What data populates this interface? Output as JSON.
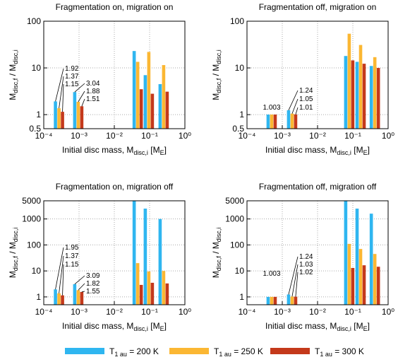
{
  "chart_data": [
    {
      "type": "bar",
      "title": "Fragmentation on, migration on",
      "xlabel": [
        "Initial disc mass, M",
        "disc,i",
        " [M",
        "E",
        "]"
      ],
      "ylabel": [
        "M",
        "disc,f",
        " / M",
        "disc,i"
      ],
      "x": [
        0.00027,
        0.00095,
        0.046,
        0.095,
        0.25
      ],
      "xlim": [
        0.0001,
        1
      ],
      "xticks": [
        {
          "value": 0.0001,
          "label": "10⁻⁴"
        },
        {
          "value": 0.001,
          "label": "10⁻³"
        },
        {
          "value": 0.01,
          "label": "10⁻²"
        },
        {
          "value": 0.1,
          "label": "10⁻¹"
        },
        {
          "value": 1,
          "label": "10⁰"
        }
      ],
      "ylim": [
        0.5,
        100
      ],
      "yticks": [
        0.5,
        1,
        10,
        100
      ],
      "xscale": "log",
      "yscale": "log",
      "grid": true,
      "series": [
        {
          "color": "#2fb6f0",
          "values": [
            1.92,
            3.04,
            23,
            7,
            4.5
          ],
          "value_labels": [
            "1.92",
            "3.04",
            null,
            null,
            null
          ]
        },
        {
          "color": "#fbb733",
          "values": [
            1.37,
            1.88,
            13.5,
            22,
            11.5
          ],
          "value_labels": [
            "1.37",
            "1.88",
            null,
            null,
            null
          ]
        },
        {
          "color": "#c4391b",
          "values": [
            1.15,
            1.51,
            3.5,
            2.8,
            3.1
          ],
          "value_labels": [
            "1.15",
            "1.51",
            null,
            null,
            null
          ]
        }
      ]
    },
    {
      "type": "bar",
      "title": "Fragmentation off, migration on",
      "xlabel": [
        "Initial disc mass, M",
        "disc,i",
        " [M",
        "E",
        "]"
      ],
      "ylabel": [
        "M",
        "disc,f",
        " / M",
        "disc,i"
      ],
      "x": [
        0.0005,
        0.0019,
        0.079,
        0.166,
        0.42
      ],
      "xlim": [
        0.0001,
        1
      ],
      "xticks": [
        {
          "value": 0.0001,
          "label": "10⁻⁴"
        },
        {
          "value": 0.001,
          "label": "10⁻³"
        },
        {
          "value": 0.01,
          "label": "10⁻²"
        },
        {
          "value": 0.1,
          "label": "10⁻¹"
        },
        {
          "value": 1,
          "label": "10⁰"
        }
      ],
      "ylim": [
        0.5,
        100
      ],
      "yticks": [
        0.5,
        1,
        10,
        100
      ],
      "xscale": "log",
      "yscale": "log",
      "grid": true,
      "series": [
        {
          "color": "#2fb6f0",
          "values": [
            1.003,
            1.24,
            18,
            13.5,
            11
          ],
          "value_labels": [
            "1.003",
            "1.24",
            null,
            null,
            null
          ]
        },
        {
          "color": "#fbb733",
          "values": [
            1.003,
            1.05,
            54,
            31,
            17
          ],
          "value_labels": [
            null,
            "1.05",
            null,
            null,
            null
          ]
        },
        {
          "color": "#c4391b",
          "values": [
            1.003,
            1.01,
            14.5,
            12.3,
            10
          ],
          "value_labels": [
            null,
            "1.01",
            null,
            null,
            null
          ]
        }
      ]
    },
    {
      "type": "bar",
      "title": "Fragmentation on, migration off",
      "xlabel": [
        "Initial disc mass, M",
        "disc,i",
        " [M",
        "E",
        "]"
      ],
      "ylabel": [
        "M",
        "disc,f",
        " / M",
        "disc,i"
      ],
      "x": [
        0.00027,
        0.00095,
        0.046,
        0.095,
        0.25
      ],
      "xlim": [
        0.0001,
        1
      ],
      "xticks": [
        {
          "value": 0.0001,
          "label": "10⁻⁴"
        },
        {
          "value": 0.001,
          "label": "10⁻³"
        },
        {
          "value": 0.01,
          "label": "10⁻²"
        },
        {
          "value": 0.1,
          "label": "10⁻¹"
        },
        {
          "value": 1,
          "label": "10⁰"
        }
      ],
      "ylim": [
        0.5,
        5000
      ],
      "yticks": [
        1,
        10,
        100,
        1000,
        5000
      ],
      "xscale": "log",
      "yscale": "log",
      "grid": true,
      "series": [
        {
          "color": "#2fb6f0",
          "values": [
            1.95,
            3.09,
            5000,
            2500,
            1000
          ],
          "value_labels": [
            "1.95",
            "3.09",
            null,
            null,
            null
          ]
        },
        {
          "color": "#fbb733",
          "values": [
            1.37,
            1.82,
            20,
            9.5,
            10
          ],
          "value_labels": [
            "1.37",
            "1.82",
            null,
            null,
            null
          ]
        },
        {
          "color": "#c4391b",
          "values": [
            1.15,
            1.55,
            2.9,
            3.5,
            3.3
          ],
          "value_labels": [
            "1.15",
            "1.55",
            null,
            null,
            null
          ]
        }
      ]
    },
    {
      "type": "bar",
      "title": "Fragmentation off, migration off",
      "xlabel": [
        "Initial disc mass, M",
        "disc,i",
        " [M",
        "E",
        "]"
      ],
      "ylabel": [
        "M",
        "disc,f",
        " / M",
        "disc,i"
      ],
      "x": [
        0.0005,
        0.0019,
        0.079,
        0.166,
        0.42
      ],
      "xlim": [
        0.0001,
        1
      ],
      "xticks": [
        {
          "value": 0.0001,
          "label": "10⁻⁴"
        },
        {
          "value": 0.001,
          "label": "10⁻³"
        },
        {
          "value": 0.01,
          "label": "10⁻²"
        },
        {
          "value": 0.1,
          "label": "10⁻¹"
        },
        {
          "value": 1,
          "label": "10⁰"
        }
      ],
      "ylim": [
        0.5,
        5000
      ],
      "yticks": [
        1,
        10,
        100,
        1000,
        5000
      ],
      "xscale": "log",
      "yscale": "log",
      "grid": true,
      "series": [
        {
          "color": "#2fb6f0",
          "values": [
            1.003,
            1.24,
            5000,
            2500,
            1600
          ],
          "value_labels": [
            "1.003",
            "1.24",
            null,
            null,
            null
          ]
        },
        {
          "color": "#fbb733",
          "values": [
            1.003,
            1.03,
            110,
            70,
            45
          ],
          "value_labels": [
            null,
            "1.03",
            null,
            null,
            null
          ]
        },
        {
          "color": "#c4391b",
          "values": [
            1.003,
            1.02,
            13,
            16.5,
            14.5
          ],
          "value_labels": [
            null,
            "1.02",
            null,
            null,
            null
          ]
        }
      ]
    }
  ],
  "legend": [
    [
      "T",
      "1 au",
      " = 200 K"
    ],
    [
      "T",
      "1 au",
      " = 250 K"
    ],
    [
      "T",
      "1 au",
      " = 300 K"
    ]
  ]
}
